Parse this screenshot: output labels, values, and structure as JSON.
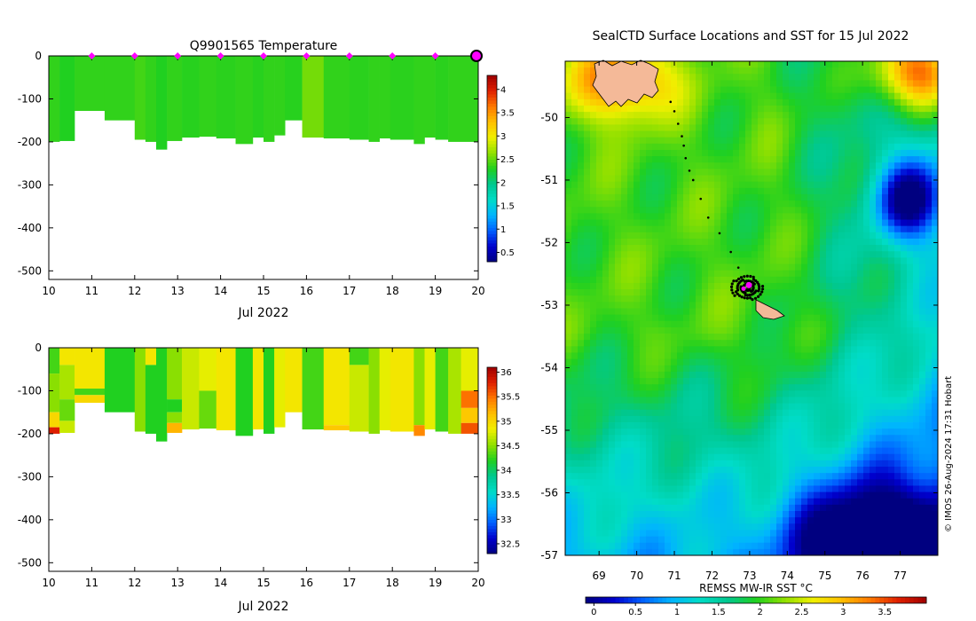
{
  "colors": {
    "temperature_scale": [
      "#000080",
      "#0000cd",
      "#0060ff",
      "#00b4ff",
      "#00dcc8",
      "#00c890",
      "#20d020",
      "#90e000",
      "#f0f000",
      "#ffc000",
      "#ff7a00",
      "#e02000",
      "#a00000"
    ],
    "salinity_scale": [
      "#000080",
      "#0000cd",
      "#0060ff",
      "#00b4ff",
      "#00dcc8",
      "#00c890",
      "#20d020",
      "#90e000",
      "#f0f000",
      "#ffc000",
      "#ff7a00",
      "#e02000",
      "#a00000"
    ],
    "sst_scale": [
      "#000080",
      "#0000cd",
      "#0060ff",
      "#00b4ff",
      "#00dcc8",
      "#00c890",
      "#20d020",
      "#90e000",
      "#f0f000",
      "#ffc000",
      "#ff7a00",
      "#e02000",
      "#a00000"
    ],
    "profile_marker": "#ff00ff",
    "land": "#f4b998"
  },
  "chart_data": [
    {
      "type": "heatmap",
      "id": "temperature",
      "title": "Q9901565  Temperature",
      "xlabel": "Jul 2022",
      "xlim": [
        10,
        20
      ],
      "ylim": [
        -520,
        0
      ],
      "xticks": [
        "10",
        "11",
        "12",
        "13",
        "14",
        "15",
        "16",
        "17",
        "18",
        "19",
        "20"
      ],
      "yticks": [
        "0",
        "-100",
        "-200",
        "-300",
        "-400",
        "-500"
      ],
      "colorbar": {
        "range": [
          0.3,
          4.3
        ],
        "ticks": [
          "0.5",
          "1",
          "1.5",
          "2",
          "2.5",
          "3",
          "3.5",
          "4"
        ]
      },
      "profile_markers_day": [
        11,
        12,
        13,
        14,
        15,
        16,
        17,
        18,
        19
      ],
      "latest_marker_day": 20,
      "profiles": [
        {
          "t0": 10.0,
          "t1": 10.25,
          "depth": 200,
          "value": 2.35
        },
        {
          "t0": 10.25,
          "t1": 10.6,
          "depth": 198,
          "value": 2.3
        },
        {
          "t0": 10.6,
          "t1": 11.3,
          "depth": 128,
          "value": 2.35
        },
        {
          "t0": 11.3,
          "t1": 12.0,
          "depth": 150,
          "value": 2.35
        },
        {
          "t0": 12.0,
          "t1": 12.25,
          "depth": 195,
          "value": 2.4
        },
        {
          "t0": 12.25,
          "t1": 12.5,
          "depth": 200,
          "value": 2.35
        },
        {
          "t0": 12.5,
          "t1": 12.75,
          "depth": 218,
          "value": 2.3
        },
        {
          "t0": 12.75,
          "t1": 13.1,
          "depth": 198,
          "value": 2.35
        },
        {
          "t0": 13.1,
          "t1": 13.5,
          "depth": 190,
          "value": 2.32
        },
        {
          "t0": 13.5,
          "t1": 13.9,
          "depth": 188,
          "value": 2.35
        },
        {
          "t0": 13.9,
          "t1": 14.35,
          "depth": 192,
          "value": 2.33
        },
        {
          "t0": 14.35,
          "t1": 14.75,
          "depth": 205,
          "value": 2.35
        },
        {
          "t0": 14.75,
          "t1": 15.0,
          "depth": 190,
          "value": 2.32
        },
        {
          "t0": 15.0,
          "t1": 15.25,
          "depth": 200,
          "value": 2.35
        },
        {
          "t0": 15.25,
          "t1": 15.5,
          "depth": 185,
          "value": 2.35
        },
        {
          "t0": 15.5,
          "t1": 15.9,
          "depth": 150,
          "value": 2.32
        },
        {
          "t0": 15.9,
          "t1": 16.4,
          "depth": 190,
          "value": 2.55
        },
        {
          "t0": 16.4,
          "t1": 17.0,
          "depth": 192,
          "value": 2.35
        },
        {
          "t0": 17.0,
          "t1": 17.45,
          "depth": 195,
          "value": 2.33
        },
        {
          "t0": 17.45,
          "t1": 17.7,
          "depth": 200,
          "value": 2.35
        },
        {
          "t0": 17.7,
          "t1": 17.95,
          "depth": 192,
          "value": 2.35
        },
        {
          "t0": 17.95,
          "t1": 18.5,
          "depth": 195,
          "value": 2.33
        },
        {
          "t0": 18.5,
          "t1": 18.75,
          "depth": 205,
          "value": 2.35
        },
        {
          "t0": 18.75,
          "t1": 19.0,
          "depth": 190,
          "value": 2.35
        },
        {
          "t0": 19.0,
          "t1": 19.3,
          "depth": 195,
          "value": 2.33
        },
        {
          "t0": 19.3,
          "t1": 20.0,
          "depth": 200,
          "value": 2.35
        }
      ]
    },
    {
      "type": "heatmap",
      "id": "salinity",
      "title": "",
      "xlabel": "Jul 2022",
      "xlim": [
        10,
        20
      ],
      "ylim": [
        -520,
        0
      ],
      "xticks": [
        "10",
        "11",
        "12",
        "13",
        "14",
        "15",
        "16",
        "17",
        "18",
        "19",
        "20"
      ],
      "yticks": [
        "0",
        "-100",
        "-200",
        "-300",
        "-400",
        "-500"
      ],
      "colorbar": {
        "range": [
          32.3,
          36.1
        ],
        "ticks": [
          "32.5",
          "33",
          "33.5",
          "34",
          "34.5",
          "35",
          "35.5",
          "36"
        ]
      },
      "profiles": [
        {
          "t0": 10.0,
          "t1": 10.25,
          "depth": 200,
          "layers": [
            {
              "d": 60,
              "v": 34.3
            },
            {
              "d": 150,
              "v": 34.5
            },
            {
              "d": 185,
              "v": 35.0
            },
            {
              "d": 200,
              "v": 35.8
            }
          ]
        },
        {
          "t0": 10.25,
          "t1": 10.6,
          "depth": 198,
          "layers": [
            {
              "d": 40,
              "v": 34.9
            },
            {
              "d": 120,
              "v": 34.6
            },
            {
              "d": 170,
              "v": 34.4
            },
            {
              "d": 198,
              "v": 34.7
            }
          ]
        },
        {
          "t0": 10.6,
          "t1": 11.3,
          "depth": 128,
          "layers": [
            {
              "d": 95,
              "v": 34.9
            },
            {
              "d": 110,
              "v": 34.3
            },
            {
              "d": 128,
              "v": 35.0
            }
          ]
        },
        {
          "t0": 11.3,
          "t1": 12.0,
          "depth": 150,
          "layers": [
            {
              "d": 150,
              "v": 34.2
            }
          ]
        },
        {
          "t0": 12.0,
          "t1": 12.25,
          "depth": 195,
          "layers": [
            {
              "d": 195,
              "v": 34.5
            }
          ]
        },
        {
          "t0": 12.25,
          "t1": 12.5,
          "depth": 200,
          "layers": [
            {
              "d": 40,
              "v": 34.9
            },
            {
              "d": 200,
              "v": 34.2
            }
          ]
        },
        {
          "t0": 12.5,
          "t1": 12.75,
          "depth": 218,
          "layers": [
            {
              "d": 218,
              "v": 34.2
            }
          ]
        },
        {
          "t0": 12.75,
          "t1": 13.1,
          "depth": 198,
          "layers": [
            {
              "d": 120,
              "v": 34.5
            },
            {
              "d": 150,
              "v": 34.2
            },
            {
              "d": 175,
              "v": 34.5
            },
            {
              "d": 198,
              "v": 35.2
            }
          ]
        },
        {
          "t0": 13.1,
          "t1": 13.5,
          "depth": 190,
          "layers": [
            {
              "d": 190,
              "v": 34.7
            }
          ]
        },
        {
          "t0": 13.5,
          "t1": 13.9,
          "depth": 188,
          "layers": [
            {
              "d": 100,
              "v": 34.8
            },
            {
              "d": 188,
              "v": 34.4
            }
          ]
        },
        {
          "t0": 13.9,
          "t1": 14.35,
          "depth": 192,
          "layers": [
            {
              "d": 192,
              "v": 34.9
            }
          ]
        },
        {
          "t0": 14.35,
          "t1": 14.75,
          "depth": 205,
          "layers": [
            {
              "d": 205,
              "v": 34.2
            }
          ]
        },
        {
          "t0": 14.75,
          "t1": 15.0,
          "depth": 190,
          "layers": [
            {
              "d": 190,
              "v": 34.9
            }
          ]
        },
        {
          "t0": 15.0,
          "t1": 15.25,
          "depth": 200,
          "layers": [
            {
              "d": 200,
              "v": 34.2
            }
          ]
        },
        {
          "t0": 15.25,
          "t1": 15.5,
          "depth": 185,
          "layers": [
            {
              "d": 185,
              "v": 34.8
            }
          ]
        },
        {
          "t0": 15.5,
          "t1": 15.9,
          "depth": 150,
          "layers": [
            {
              "d": 150,
              "v": 34.9
            }
          ]
        },
        {
          "t0": 15.9,
          "t1": 16.4,
          "depth": 190,
          "layers": [
            {
              "d": 190,
              "v": 34.3
            }
          ]
        },
        {
          "t0": 16.4,
          "t1": 17.0,
          "depth": 192,
          "layers": [
            {
              "d": 180,
              "v": 34.9
            },
            {
              "d": 192,
              "v": 35.1
            }
          ]
        },
        {
          "t0": 17.0,
          "t1": 17.45,
          "depth": 195,
          "layers": [
            {
              "d": 40,
              "v": 34.3
            },
            {
              "d": 195,
              "v": 34.7
            }
          ]
        },
        {
          "t0": 17.45,
          "t1": 17.7,
          "depth": 200,
          "layers": [
            {
              "d": 200,
              "v": 34.5
            }
          ]
        },
        {
          "t0": 17.7,
          "t1": 17.95,
          "depth": 192,
          "layers": [
            {
              "d": 192,
              "v": 34.8
            }
          ]
        },
        {
          "t0": 17.95,
          "t1": 18.5,
          "depth": 195,
          "layers": [
            {
              "d": 195,
              "v": 34.9
            }
          ]
        },
        {
          "t0": 18.5,
          "t1": 18.75,
          "depth": 205,
          "layers": [
            {
              "d": 180,
              "v": 34.5
            },
            {
              "d": 205,
              "v": 35.4
            }
          ]
        },
        {
          "t0": 18.75,
          "t1": 19.0,
          "depth": 190,
          "layers": [
            {
              "d": 190,
              "v": 34.8
            }
          ]
        },
        {
          "t0": 19.0,
          "t1": 19.3,
          "depth": 195,
          "layers": [
            {
              "d": 195,
              "v": 34.3
            }
          ]
        },
        {
          "t0": 19.3,
          "t1": 19.6,
          "depth": 200,
          "layers": [
            {
              "d": 200,
              "v": 34.6
            }
          ]
        },
        {
          "t0": 19.6,
          "t1": 20.0,
          "depth": 200,
          "layers": [
            {
              "d": 100,
              "v": 34.8
            },
            {
              "d": 140,
              "v": 35.5
            },
            {
              "d": 175,
              "v": 35.1
            },
            {
              "d": 200,
              "v": 35.6
            }
          ]
        }
      ]
    },
    {
      "type": "heatmap",
      "id": "sst_map",
      "title": "SealCTD Surface Locations and SST for 15 Jul 2022",
      "xlabel": "",
      "xlim": [
        68.1,
        78.0
      ],
      "ylim": [
        -57.0,
        -49.1
      ],
      "xticks": [
        "69",
        "70",
        "71",
        "72",
        "73",
        "74",
        "75",
        "76",
        "77"
      ],
      "yticks": [
        "-50",
        "-51",
        "-52",
        "-53",
        "-54",
        "-55",
        "-56",
        "-57"
      ],
      "colorbar": {
        "label": "REMSS MW-IR SST °C",
        "range": [
          -0.1,
          4.0
        ],
        "ticks": [
          "0",
          "0.5",
          "1",
          "1.5",
          "2",
          "2.5",
          "3",
          "3.5"
        ]
      },
      "track": [
        [
          70.9,
          -49.75
        ],
        [
          71.0,
          -49.9
        ],
        [
          71.1,
          -50.1
        ],
        [
          71.2,
          -50.3
        ],
        [
          71.25,
          -50.45
        ],
        [
          71.3,
          -50.65
        ],
        [
          71.4,
          -50.85
        ],
        [
          71.5,
          -51.0
        ],
        [
          71.7,
          -51.3
        ],
        [
          71.9,
          -51.6
        ],
        [
          72.2,
          -51.85
        ],
        [
          72.5,
          -52.15
        ],
        [
          72.7,
          -52.4
        ],
        [
          72.8,
          -52.6
        ],
        [
          72.95,
          -52.72
        ]
      ],
      "cluster": [
        72.95,
        -52.72
      ],
      "latest": [
        72.98,
        -52.68
      ],
      "watermark": "© IMOS 26-Aug-2024 17:31 Hobart"
    }
  ]
}
